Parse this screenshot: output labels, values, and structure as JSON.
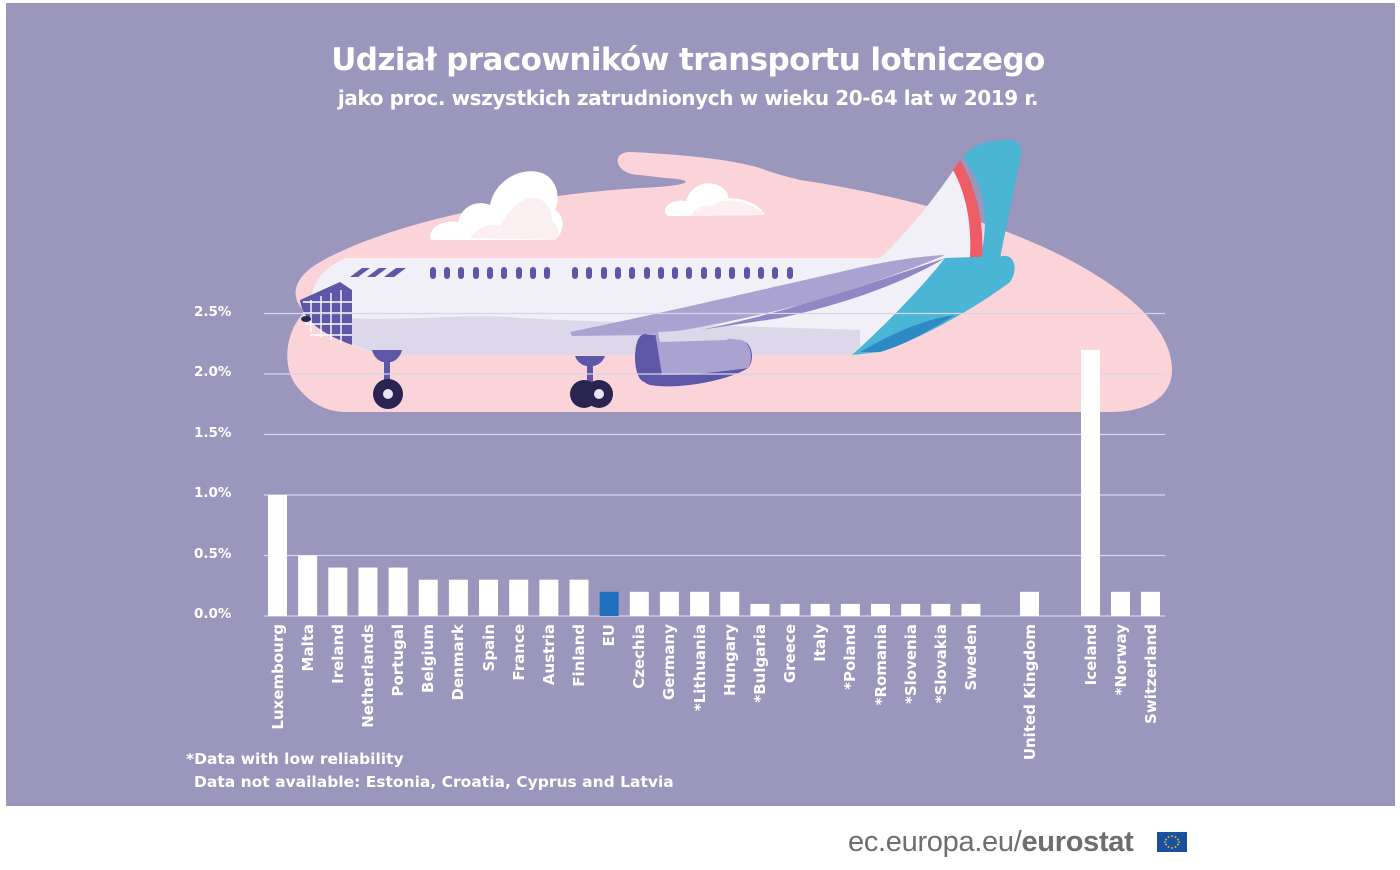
{
  "title": "Udział pracowników transportu lotniczego",
  "subtitle": "jako proc. wszystkich zatrudnionych  w wieku 20-64 lat w 2019 r.",
  "colors": {
    "background": "#9b96bc",
    "bar": "#ffffff",
    "bar_highlight": "#1f6fbf",
    "cloud_pink": "#fbd4da",
    "gridline": "#d8d5ea"
  },
  "y_axis": {
    "ticks": [
      "0.0%",
      "0.5%",
      "1.0%",
      "1.5%",
      "2.0%",
      "2.5%"
    ]
  },
  "footnotes": {
    "low_reliability": "*Data with low reliability",
    "not_available": "Data not available: Estonia, Croatia, Cyprus and Latvia"
  },
  "brand": {
    "prefix": "ec.europa.eu/",
    "name": "eurostat"
  },
  "chart_data": {
    "type": "bar",
    "title": "Udział pracowników transportu lotniczego",
    "subtitle": "jako proc. wszystkich zatrudnionych  w wieku 20-64 lat w 2019 r.",
    "xlabel": "",
    "ylabel": "",
    "ylim": [
      0,
      2.5
    ],
    "y_tick_format": "percent",
    "grid": true,
    "categories": [
      "Luxembourg",
      "Malta",
      "Ireland",
      "Netherlands",
      "Portugal",
      "Belgium",
      "Denmark",
      "Spain",
      "France",
      "Austria",
      "Finland",
      "EU",
      "Czechia",
      "Germany",
      "*Lithuania",
      "Hungary",
      "*Bulgaria",
      "Greece",
      "Italy",
      "*Poland",
      "*Romania",
      "*Slovenia",
      "*Slovakia",
      "Sweden",
      "United Kingdom",
      "Iceland",
      "*Norway",
      "Switzerland"
    ],
    "values": [
      1.0,
      0.5,
      0.4,
      0.4,
      0.4,
      0.3,
      0.3,
      0.3,
      0.3,
      0.3,
      0.3,
      0.2,
      0.2,
      0.2,
      0.2,
      0.2,
      0.1,
      0.1,
      0.1,
      0.1,
      0.1,
      0.1,
      0.1,
      0.1,
      0.2,
      2.2,
      0.2,
      0.2
    ],
    "highlight": "EU",
    "annotations": [
      "*Data with low reliability",
      "Data not available: Estonia, Croatia, Cyprus and Latvia"
    ]
  }
}
